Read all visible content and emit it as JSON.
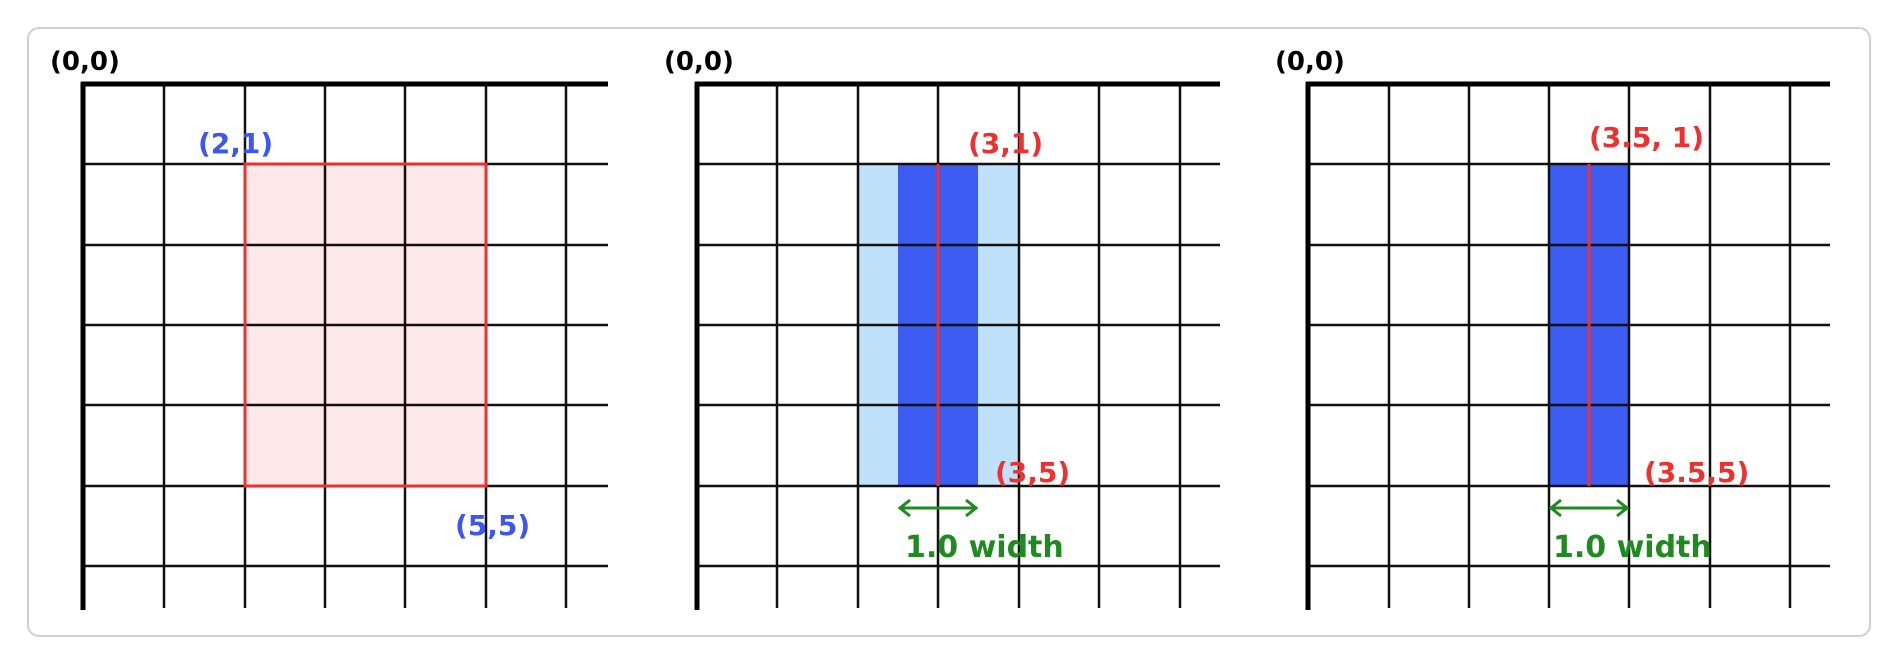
{
  "colors": {
    "grid": "#111111",
    "red": "#f0302e",
    "blue_label": "#3a57f0",
    "green": "#1f8a1f",
    "pink_fill": "#fde9e9",
    "light_blue": "#bfe1fb",
    "dark_blue": "#3d5cf2"
  },
  "panels": [
    {
      "origin_label": "(0,0)",
      "labels": [
        "(2,1)",
        "(5,5)"
      ]
    },
    {
      "origin_label": "(0,0)",
      "labels": [
        "(3,1)",
        "(3,5)"
      ],
      "width_label": "1.0 width"
    },
    {
      "origin_label": "(0,0)",
      "labels": [
        "(3.5, 1)",
        "(3.5,5)"
      ],
      "width_label": "1.0 width"
    }
  ]
}
